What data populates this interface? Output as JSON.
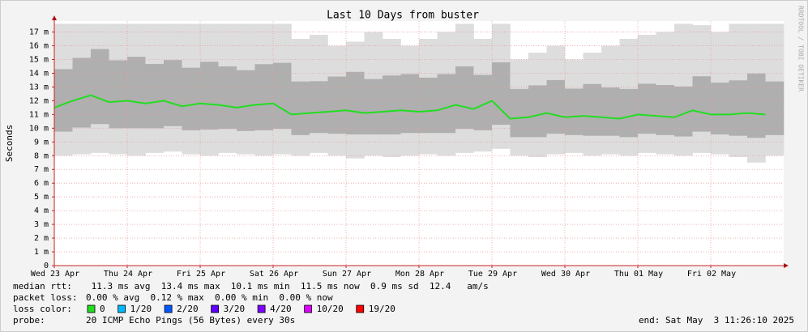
{
  "chart_data": {
    "type": "smokeping",
    "title": "Last 10 Days from buster",
    "y_label": "Seconds",
    "watermark": "RRDTOOL / TOBI OETIKER",
    "ylim": [
      0,
      0.0178
    ],
    "yticks": [
      {
        "value": 0,
        "label": "0"
      },
      {
        "value": 0.001,
        "label": "1 m"
      },
      {
        "value": 0.002,
        "label": "2 m"
      },
      {
        "value": 0.003,
        "label": "3 m"
      },
      {
        "value": 0.004,
        "label": "4 m"
      },
      {
        "value": 0.005,
        "label": "5 m"
      },
      {
        "value": 0.006,
        "label": "6 m"
      },
      {
        "value": 0.007,
        "label": "7 m"
      },
      {
        "value": 0.008,
        "label": "8 m"
      },
      {
        "value": 0.009,
        "label": "9 m"
      },
      {
        "value": 0.01,
        "label": "10 m"
      },
      {
        "value": 0.011,
        "label": "11 m"
      },
      {
        "value": 0.012,
        "label": "12 m"
      },
      {
        "value": 0.013,
        "label": "13 m"
      },
      {
        "value": 0.014,
        "label": "14 m"
      },
      {
        "value": 0.015,
        "label": "15 m"
      },
      {
        "value": 0.016,
        "label": "16 m"
      },
      {
        "value": 0.017,
        "label": "17 m"
      }
    ],
    "xlim": [
      0,
      10
    ],
    "xticks": [
      {
        "value": 0,
        "label": "Wed 23 Apr"
      },
      {
        "value": 1,
        "label": "Thu 24 Apr"
      },
      {
        "value": 2,
        "label": "Fri 25 Apr"
      },
      {
        "value": 3,
        "label": "Sat 26 Apr"
      },
      {
        "value": 4,
        "label": "Sun 27 Apr"
      },
      {
        "value": 5,
        "label": "Mon 28 Apr"
      },
      {
        "value": 6,
        "label": "Tue 29 Apr"
      },
      {
        "value": 7,
        "label": "Wed 30 Apr"
      },
      {
        "value": 8,
        "label": "Thu 01 May"
      },
      {
        "value": 9,
        "label": "Fri 02 May"
      }
    ],
    "grid": true,
    "x": [
      0,
      0.25,
      0.5,
      0.75,
      1,
      1.25,
      1.5,
      1.75,
      2,
      2.25,
      2.5,
      2.75,
      3,
      3.25,
      3.5,
      3.75,
      4,
      4.25,
      4.5,
      4.75,
      5,
      5.25,
      5.5,
      5.75,
      6,
      6.25,
      6.5,
      6.75,
      7,
      7.25,
      7.5,
      7.75,
      8,
      8.25,
      8.5,
      8.75,
      9,
      9.25,
      9.5,
      9.75
    ],
    "median": {
      "color": "#22dd22",
      "values": [
        0.0115,
        0.012,
        0.0124,
        0.0119,
        0.012,
        0.0118,
        0.012,
        0.0116,
        0.0118,
        0.0117,
        0.0115,
        0.0117,
        0.0118,
        0.011,
        0.0111,
        0.0112,
        0.0113,
        0.0111,
        0.0112,
        0.0113,
        0.0112,
        0.0113,
        0.0117,
        0.0114,
        0.012,
        0.0107,
        0.0108,
        0.0111,
        0.0108,
        0.0109,
        0.0108,
        0.0107,
        0.011,
        0.0109,
        0.0108,
        0.0113,
        0.011,
        0.011,
        0.0111,
        0.011
      ]
    },
    "smoke": {
      "color": "#888888",
      "high": [
        0.0176,
        0.0176,
        0.0176,
        0.0176,
        0.0176,
        0.0176,
        0.0176,
        0.0176,
        0.0176,
        0.0176,
        0.0176,
        0.0176,
        0.0176,
        0.0165,
        0.0168,
        0.016,
        0.0163,
        0.017,
        0.0165,
        0.016,
        0.0165,
        0.017,
        0.0176,
        0.0165,
        0.0176,
        0.015,
        0.0155,
        0.016,
        0.015,
        0.0155,
        0.016,
        0.0165,
        0.0168,
        0.017,
        0.0176,
        0.0175,
        0.017,
        0.0176,
        0.0176,
        0.0176
      ],
      "low": [
        0.008,
        0.0081,
        0.0082,
        0.0081,
        0.008,
        0.0082,
        0.0083,
        0.0081,
        0.008,
        0.0082,
        0.0081,
        0.008,
        0.0081,
        0.008,
        0.0082,
        0.008,
        0.0078,
        0.008,
        0.0079,
        0.008,
        0.0081,
        0.008,
        0.0082,
        0.0083,
        0.0085,
        0.008,
        0.0079,
        0.0081,
        0.0082,
        0.008,
        0.0081,
        0.008,
        0.0082,
        0.0081,
        0.008,
        0.0082,
        0.0081,
        0.0079,
        0.0075,
        0.008
      ]
    }
  },
  "stats": [
    {
      "label": "median rtt:",
      "text": " 11.3 ms avg  13.4 ms max  10.1 ms min  11.5 ms now  0.9 ms sd  12.4   am/s"
    },
    {
      "label": "packet loss:",
      "text": "0.00 % avg  0.12 % max  0.00 % min  0.00 % now"
    }
  ],
  "loss_legend": {
    "label": "loss color:",
    "items": [
      {
        "label": "0",
        "color": "#22dd22"
      },
      {
        "label": "1/20",
        "color": "#00b8ff"
      },
      {
        "label": "2/20",
        "color": "#0059ff"
      },
      {
        "label": "3/20",
        "color": "#5e00ff"
      },
      {
        "label": "4/20",
        "color": "#7e00ff"
      },
      {
        "label": "10/20",
        "color": "#dd00ff"
      },
      {
        "label": "19/20",
        "color": "#ff0000"
      }
    ]
  },
  "probe": {
    "label": "probe:",
    "text": "20 ICMP Echo Pings (56 Bytes) every 30s"
  },
  "end": "end: Sat May  3 11:26:10 2025"
}
